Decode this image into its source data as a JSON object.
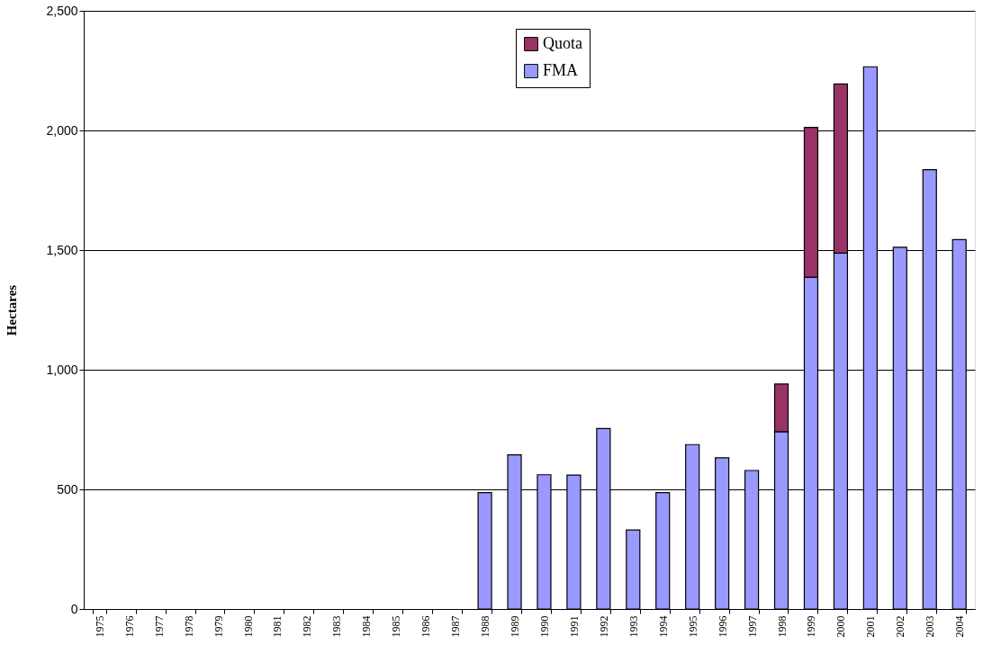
{
  "chart_data": {
    "type": "bar",
    "stacked": true,
    "ylabel": "Hectares",
    "categories": [
      "1975",
      "1976",
      "1977",
      "1978",
      "1979",
      "1980",
      "1981",
      "1982",
      "1983",
      "1984",
      "1985",
      "1986",
      "1987",
      "1988",
      "1989",
      "1990",
      "1991",
      "1992",
      "1993",
      "1994",
      "1995",
      "1996",
      "1997",
      "1998",
      "1999",
      "2000",
      "2001",
      "2002",
      "2003",
      "2004"
    ],
    "series": [
      {
        "name": "FMA",
        "color": "#9999ff",
        "values": [
          null,
          null,
          null,
          null,
          null,
          null,
          null,
          null,
          null,
          null,
          null,
          null,
          null,
          486,
          644,
          561,
          560,
          754,
          330,
          486,
          687,
          632,
          579,
          741,
          1387,
          1487,
          2266,
          1512,
          1836,
          1544
        ]
      },
      {
        "name": "Quota",
        "color": "#993366",
        "values": [
          null,
          null,
          null,
          null,
          null,
          null,
          null,
          null,
          null,
          null,
          null,
          null,
          null,
          null,
          null,
          null,
          null,
          null,
          null,
          null,
          null,
          null,
          null,
          199,
          626,
          707,
          null,
          null,
          null,
          null
        ]
      }
    ],
    "ylim": [
      0,
      2500
    ],
    "yticks": [
      0,
      500,
      {
        "value": 1000,
        "label": "1,000"
      },
      {
        "value": 1500,
        "label": "1,500"
      },
      {
        "value": 2000,
        "label": "2,000"
      },
      {
        "value": 2500,
        "label": "2,500"
      }
    ],
    "grid": "y",
    "legend": "top"
  }
}
